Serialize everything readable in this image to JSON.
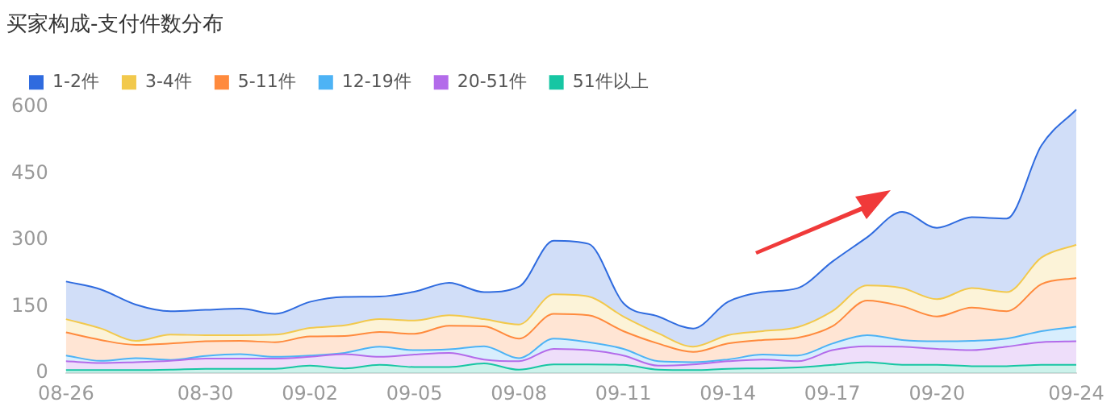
{
  "chart_data": {
    "type": "area",
    "title": "买家构成-支付件数分布",
    "stacked": true,
    "grid": false,
    "legend": "top left",
    "marker": "none",
    "categories": [
      "08-26",
      null,
      null,
      null,
      "08-30",
      null,
      null,
      "09-02",
      null,
      null,
      "09-05",
      null,
      null,
      "09-08",
      null,
      null,
      "09-11",
      null,
      null,
      "09-14",
      null,
      null,
      "09-17",
      null,
      null,
      "09-20",
      null,
      null,
      null,
      "09-24"
    ],
    "ylim": [
      0,
      600
    ],
    "yticks": [
      0,
      150,
      300,
      450,
      600
    ],
    "series": [
      {
        "name": "51件以上",
        "color": "#17c6a3",
        "values": [
          7,
          7,
          7,
          8,
          10,
          10,
          10,
          17,
          11,
          19,
          14,
          14,
          22,
          8,
          20,
          20,
          19,
          8,
          7,
          10,
          11,
          13,
          19,
          25,
          19,
          19,
          16,
          16,
          19,
          19
        ]
      },
      {
        "name": "20-51件",
        "color": "#b36bea",
        "values": [
          20,
          16,
          18,
          20,
          23,
          23,
          23,
          20,
          32,
          18,
          28,
          32,
          9,
          19,
          35,
          32,
          21,
          9,
          13,
          17,
          20,
          14,
          33,
          36,
          41,
          36,
          36,
          44,
          51,
          53
        ]
      },
      {
        "name": "12-19件",
        "color": "#4db3f5",
        "values": [
          13,
          5,
          9,
          2,
          6,
          10,
          4,
          3,
          3,
          23,
          10,
          8,
          30,
          7,
          23,
          18,
          15,
          10,
          5,
          4,
          11,
          13,
          15,
          25,
          15,
          17,
          21,
          18,
          25,
          33
        ]
      },
      {
        "name": "5-11件",
        "color": "#ff8a3d",
        "values": [
          52,
          47,
          30,
          37,
          33,
          30,
          33,
          43,
          38,
          33,
          37,
          53,
          45,
          44,
          56,
          61,
          40,
          40,
          23,
          36,
          33,
          40,
          39,
          78,
          76,
          56,
          75,
          62,
          106,
          110
        ]
      },
      {
        "name": "3-4件",
        "color": "#f2c94c",
        "values": [
          30,
          26,
          9,
          20,
          14,
          13,
          17,
          19,
          24,
          29,
          30,
          24,
          16,
          32,
          44,
          42,
          33,
          23,
          12,
          19,
          20,
          24,
          34,
          34,
          41,
          39,
          44,
          43,
          60,
          75
        ]
      },
      {
        "name": "1-2件",
        "color": "#2f6bdf",
        "values": [
          85,
          88,
          82,
          53,
          57,
          60,
          47,
          59,
          64,
          51,
          65,
          73,
          61,
          85,
          121,
          119,
          30,
          38,
          41,
          75,
          88,
          88,
          112,
          109,
          172,
          161,
          160,
          166,
          253,
          305
        ]
      }
    ]
  }
}
